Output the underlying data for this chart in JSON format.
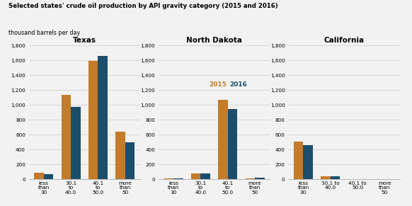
{
  "title_line1": "Selected states' crude oil production by API gravity category (2015 and 2016)",
  "title_line2": "thousand barrels per day",
  "states": [
    "Texas",
    "North Dakota",
    "California"
  ],
  "categories_texas": [
    "less\nthan\n30",
    "30.1\nto\n40.0",
    "40.1\nto\n50.0",
    "more\nthan\n50"
  ],
  "categories_nd": [
    "less\nthan\n30",
    "30.1\nto\n40.0",
    "40.1\nto\n50.0",
    "more\nthan\n50"
  ],
  "categories_ca": [
    "less\nthan\n30",
    "30.1 to\n40.0",
    "40.1 to\n50.0",
    "more\nthan\n50"
  ],
  "values_2015": [
    [
      90,
      1130,
      1590,
      640
    ],
    [
      10,
      75,
      1070,
      10
    ],
    [
      510,
      40,
      0,
      0
    ]
  ],
  "values_2016": [
    [
      70,
      975,
      1660,
      500
    ],
    [
      15,
      75,
      945,
      20
    ],
    [
      460,
      35,
      0,
      0
    ]
  ],
  "color_2015": "#C47B2A",
  "color_2016": "#1C4E6C",
  "ylim": [
    0,
    1800
  ],
  "yticks": [
    0,
    200,
    400,
    600,
    800,
    1000,
    1200,
    1400,
    1600,
    1800
  ],
  "ytick_labels": [
    "0",
    "200",
    "400",
    "600",
    "800",
    "1,000",
    "1,200",
    "1,400",
    "1,600",
    "1,800"
  ],
  "background_color": "#F2F2F2",
  "grid_color": "#CCCCCC"
}
